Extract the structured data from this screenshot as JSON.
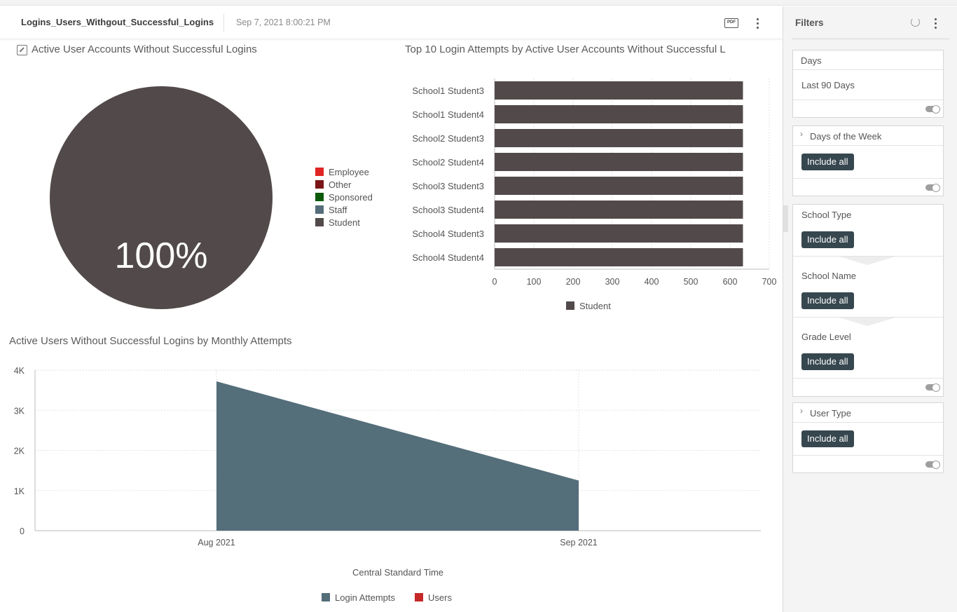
{
  "header": {
    "title": "Logins_Users_Withgout_Successful_Logins",
    "timestamp": "Sep 7, 2021 8:00:21 PM",
    "pdf_label": "PDF"
  },
  "pie_panel": {
    "title": "Active User Accounts Without Successful Logins",
    "legend": [
      {
        "label": "Employee",
        "color": "#e02424"
      },
      {
        "label": "Other",
        "color": "#7a1515"
      },
      {
        "label": "Sponsored",
        "color": "#0b5a0b"
      },
      {
        "label": "Staff",
        "color": "#546e7a"
      },
      {
        "label": "Student",
        "color": "#524a4a"
      }
    ]
  },
  "bar_panel": {
    "title": "Top 10 Login Attempts by Active User Accounts Without Successful L",
    "legend": [
      {
        "label": "Student",
        "color": "#524a4a"
      }
    ]
  },
  "area_panel": {
    "title": "Active Users Without Successful Logins by Monthly Attempts",
    "legend": [
      {
        "label": "Login Attempts",
        "color": "#546e7a"
      },
      {
        "label": "Users",
        "color": "#c62828"
      }
    ]
  },
  "chart_data": [
    {
      "type": "pie",
      "slices": [
        {
          "name": "Student",
          "value": 100,
          "label": "100%",
          "color": "#524a4a"
        }
      ]
    },
    {
      "type": "bar",
      "orientation": "horizontal",
      "categories": [
        "School1 Student3",
        "School1 Student4",
        "School2 Student3",
        "School2 Student4",
        "School3 Student3",
        "School3 Student4",
        "School4 Student3",
        "School4 Student4"
      ],
      "series": [
        {
          "name": "Student",
          "color": "#524a4a",
          "values": [
            633,
            633,
            633,
            633,
            633,
            633,
            633,
            633
          ]
        }
      ],
      "xlim": [
        0,
        700
      ],
      "xticks": [
        "0",
        "100",
        "200",
        "300",
        "400",
        "500",
        "600",
        "700"
      ],
      "grid": true,
      "legend_placement": "bottom"
    },
    {
      "type": "area",
      "x": [
        "Aug 2021",
        "Sep 2021"
      ],
      "series": [
        {
          "name": "Login Attempts",
          "color": "#546e7a",
          "values": [
            3720,
            1250
          ]
        }
      ],
      "ylim": [
        0,
        4000
      ],
      "yticks": [
        "0",
        "1K",
        "2K",
        "3K",
        "4K"
      ],
      "xlabel": "Central Standard Time",
      "grid": true,
      "legend_placement": "bottom"
    }
  ],
  "filters": {
    "title": "Filters",
    "days": {
      "label": "Days",
      "value": "Last 90 Days"
    },
    "days_of_week": {
      "label": "Days of the Week",
      "button": "Include all"
    },
    "school_type": {
      "label": "School Type",
      "button": "Include all"
    },
    "school_name": {
      "label": "School Name",
      "button": "Include all"
    },
    "grade_level": {
      "label": "Grade Level",
      "button": "Include all"
    },
    "user_type": {
      "label": "User Type",
      "button": "Include all"
    }
  }
}
